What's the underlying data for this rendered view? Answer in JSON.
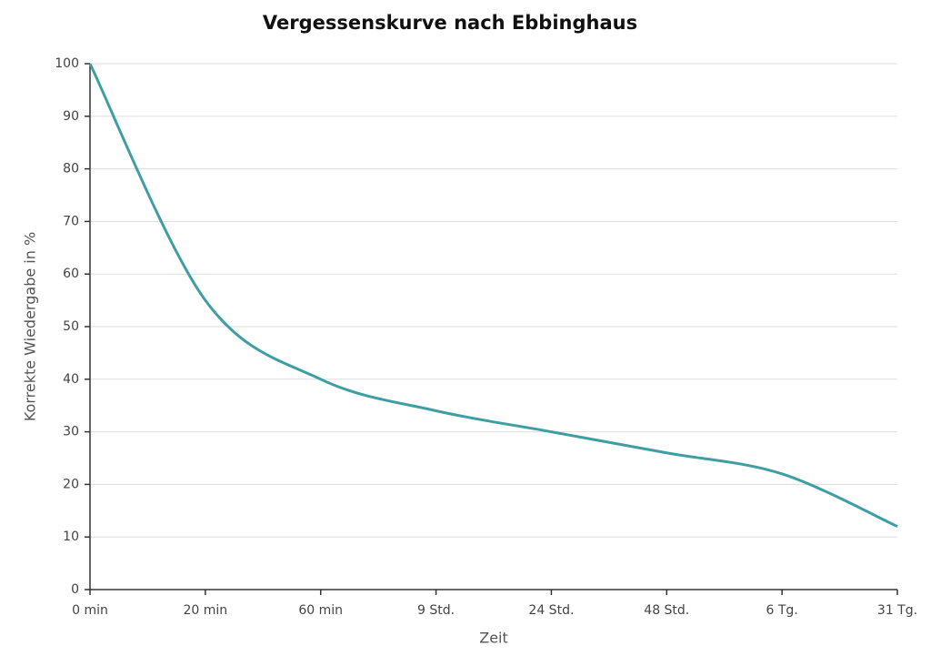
{
  "chart_data": {
    "type": "line",
    "title": "Vergessenskurve nach Ebbinghaus",
    "x_label": "Zeit",
    "y_label": "Korrekte Wiedergabe in %",
    "categories": [
      "0 min",
      "20 min",
      "60 min",
      "9 Std.",
      "24 Std.",
      "48 Std.",
      "6 Tg.",
      "31 Tg."
    ],
    "series": [
      {
        "name": "Korrekte Wiedergabe",
        "color": "#3f9ea4",
        "values": [
          100,
          55,
          40,
          34,
          30,
          26,
          22,
          12
        ]
      }
    ],
    "ylim": [
      0,
      100
    ],
    "yticks": [
      0,
      10,
      20,
      30,
      40,
      50,
      60,
      70,
      80,
      90,
      100
    ],
    "grid": true
  }
}
